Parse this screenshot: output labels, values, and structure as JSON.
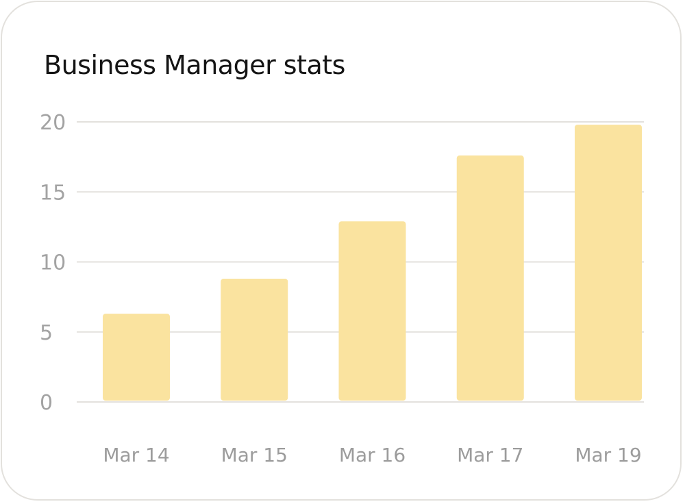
{
  "chart_data": {
    "type": "bar",
    "title": "Business Manager stats",
    "categories": [
      "Mar 14",
      "Mar 15",
      "Mar 16",
      "Mar 17",
      "Mar 19"
    ],
    "values": [
      6.3,
      8.8,
      12.9,
      17.6,
      19.8
    ],
    "ylim": [
      0,
      20
    ],
    "yticks": [
      0,
      5,
      10,
      15,
      20
    ],
    "xlabel": "",
    "ylabel": "",
    "grid": true,
    "bar_color": "#fae39f",
    "grid_color": "#e3e1dd"
  }
}
